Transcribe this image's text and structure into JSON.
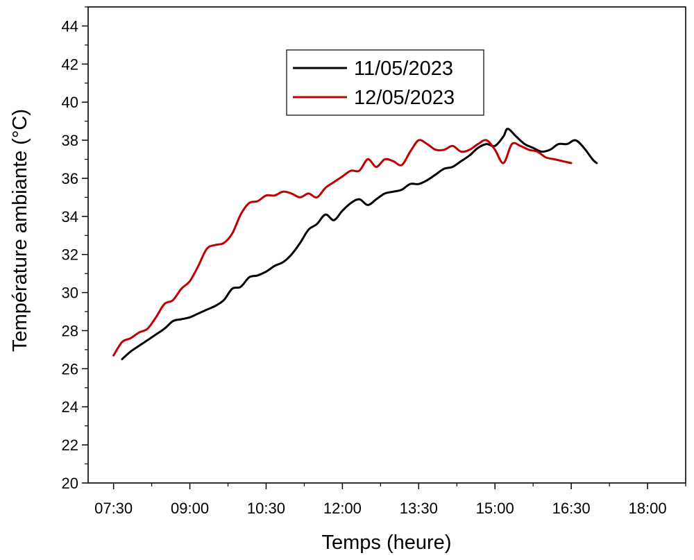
{
  "chart_data": {
    "type": "line",
    "xlabel": "Temps (heure)",
    "ylabel": "Température ambiante (°C)",
    "x_ticks": [
      "07:30",
      "09:00",
      "10:30",
      "12:00",
      "13:30",
      "15:00",
      "16:30",
      "18:00"
    ],
    "xlim": [
      "07:00",
      "18:45"
    ],
    "ylim": [
      20,
      45
    ],
    "y_ticks": [
      20,
      22,
      24,
      26,
      28,
      30,
      32,
      34,
      36,
      38,
      40,
      42,
      44
    ],
    "grid": false,
    "legend_position": "top-center",
    "series": [
      {
        "name": "11/05/2023",
        "color": "#000000",
        "points": [
          [
            "07:40",
            26.5
          ],
          [
            "07:50",
            26.9
          ],
          [
            "08:00",
            27.2
          ],
          [
            "08:10",
            27.5
          ],
          [
            "08:20",
            27.8
          ],
          [
            "08:30",
            28.1
          ],
          [
            "08:40",
            28.5
          ],
          [
            "08:50",
            28.6
          ],
          [
            "09:00",
            28.7
          ],
          [
            "09:10",
            28.9
          ],
          [
            "09:20",
            29.1
          ],
          [
            "09:30",
            29.3
          ],
          [
            "09:40",
            29.6
          ],
          [
            "09:50",
            30.2
          ],
          [
            "10:00",
            30.3
          ],
          [
            "10:10",
            30.8
          ],
          [
            "10:20",
            30.9
          ],
          [
            "10:30",
            31.1
          ],
          [
            "10:40",
            31.4
          ],
          [
            "10:50",
            31.6
          ],
          [
            "11:00",
            32.0
          ],
          [
            "11:10",
            32.6
          ],
          [
            "11:20",
            33.3
          ],
          [
            "11:30",
            33.6
          ],
          [
            "11:40",
            34.1
          ],
          [
            "11:50",
            33.8
          ],
          [
            "12:00",
            34.3
          ],
          [
            "12:10",
            34.7
          ],
          [
            "12:20",
            34.9
          ],
          [
            "12:30",
            34.6
          ],
          [
            "12:40",
            34.9
          ],
          [
            "12:50",
            35.2
          ],
          [
            "13:00",
            35.3
          ],
          [
            "13:10",
            35.4
          ],
          [
            "13:20",
            35.7
          ],
          [
            "13:30",
            35.7
          ],
          [
            "13:40",
            35.9
          ],
          [
            "13:50",
            36.2
          ],
          [
            "14:00",
            36.5
          ],
          [
            "14:10",
            36.6
          ],
          [
            "14:20",
            36.9
          ],
          [
            "14:30",
            37.2
          ],
          [
            "14:40",
            37.6
          ],
          [
            "14:50",
            37.8
          ],
          [
            "15:00",
            37.7
          ],
          [
            "15:10",
            38.2
          ],
          [
            "15:15",
            38.6
          ],
          [
            "15:25",
            38.2
          ],
          [
            "15:35",
            37.8
          ],
          [
            "15:45",
            37.6
          ],
          [
            "15:55",
            37.4
          ],
          [
            "16:05",
            37.5
          ],
          [
            "16:15",
            37.8
          ],
          [
            "16:25",
            37.8
          ],
          [
            "16:35",
            38.0
          ],
          [
            "16:45",
            37.6
          ],
          [
            "16:55",
            37.0
          ],
          [
            "17:00",
            36.8
          ]
        ]
      },
      {
        "name": "12/05/2023",
        "color": "#c00000",
        "points": [
          [
            "07:30",
            26.7
          ],
          [
            "07:40",
            27.4
          ],
          [
            "07:50",
            27.6
          ],
          [
            "08:00",
            27.9
          ],
          [
            "08:10",
            28.1
          ],
          [
            "08:20",
            28.7
          ],
          [
            "08:30",
            29.4
          ],
          [
            "08:40",
            29.6
          ],
          [
            "08:50",
            30.2
          ],
          [
            "09:00",
            30.6
          ],
          [
            "09:10",
            31.4
          ],
          [
            "09:20",
            32.3
          ],
          [
            "09:30",
            32.5
          ],
          [
            "09:40",
            32.6
          ],
          [
            "09:50",
            33.1
          ],
          [
            "10:00",
            34.1
          ],
          [
            "10:10",
            34.7
          ],
          [
            "10:20",
            34.8
          ],
          [
            "10:30",
            35.1
          ],
          [
            "10:40",
            35.1
          ],
          [
            "10:50",
            35.3
          ],
          [
            "11:00",
            35.2
          ],
          [
            "11:10",
            35.0
          ],
          [
            "11:20",
            35.2
          ],
          [
            "11:30",
            35.0
          ],
          [
            "11:40",
            35.5
          ],
          [
            "11:50",
            35.8
          ],
          [
            "12:00",
            36.1
          ],
          [
            "12:10",
            36.4
          ],
          [
            "12:20",
            36.4
          ],
          [
            "12:30",
            37.0
          ],
          [
            "12:40",
            36.6
          ],
          [
            "12:50",
            37.0
          ],
          [
            "13:00",
            36.9
          ],
          [
            "13:10",
            36.7
          ],
          [
            "13:20",
            37.4
          ],
          [
            "13:30",
            38.0
          ],
          [
            "13:40",
            37.8
          ],
          [
            "13:50",
            37.5
          ],
          [
            "14:00",
            37.5
          ],
          [
            "14:10",
            37.7
          ],
          [
            "14:20",
            37.4
          ],
          [
            "14:30",
            37.5
          ],
          [
            "14:40",
            37.8
          ],
          [
            "14:50",
            38.0
          ],
          [
            "15:00",
            37.5
          ],
          [
            "15:10",
            36.8
          ],
          [
            "15:20",
            37.8
          ],
          [
            "15:30",
            37.7
          ],
          [
            "15:40",
            37.5
          ],
          [
            "15:50",
            37.4
          ],
          [
            "16:00",
            37.1
          ],
          [
            "16:10",
            37.0
          ],
          [
            "16:20",
            36.9
          ],
          [
            "16:30",
            36.8
          ]
        ]
      }
    ]
  }
}
